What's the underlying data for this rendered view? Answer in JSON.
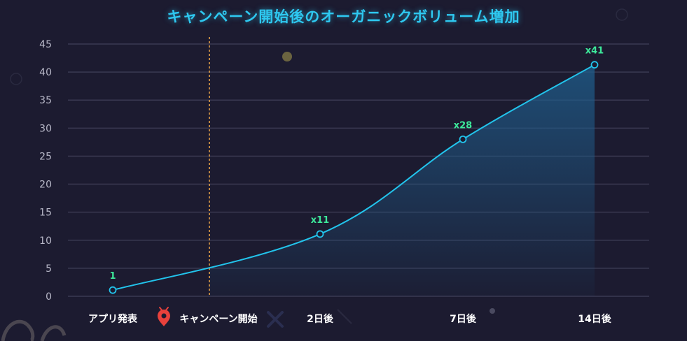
{
  "chart_data": {
    "type": "area",
    "title": "キャンペーン開始後のオーガニックボリューム増加",
    "xlabel": "",
    "ylabel": "",
    "ylim": [
      0,
      45
    ],
    "yticks": [
      0,
      5,
      10,
      15,
      20,
      25,
      30,
      35,
      40,
      45
    ],
    "grid": true,
    "categories": [
      "アプリ発表",
      "キャンペーン開始",
      "2日後",
      "7日後",
      "14日後"
    ],
    "points": [
      {
        "category": "アプリ発表",
        "value": 1.1,
        "label": "1"
      },
      {
        "category": "2日後",
        "value": 11.1,
        "label": "x11"
      },
      {
        "category": "7日後",
        "value": 28.0,
        "label": "x28"
      },
      {
        "category": "14日後",
        "value": 41.3,
        "label": "x41"
      }
    ],
    "campaign_marker": {
      "category": "キャンペーン開始",
      "icon": "location-pin-icon"
    },
    "colors": {
      "background": "#1c1b30",
      "line": "#22c4ec",
      "area": "#1f5f8e",
      "data_label": "#3de89a",
      "marker_line": "#f0a848",
      "grid": "#3a3a52",
      "pin": "#e8413c"
    }
  }
}
